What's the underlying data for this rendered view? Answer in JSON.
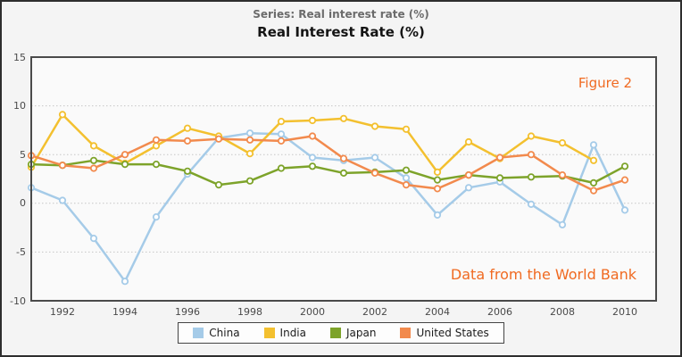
{
  "header": {
    "subtitle": "Series: Real interest rate (%)",
    "title": "Real Interest Rate (%)"
  },
  "annotations": {
    "figure_label": "Figure 2",
    "source_label": "Data from the World Bank",
    "annotation_color": "#f06a21"
  },
  "chart_data": {
    "type": "line",
    "title": "Real Interest Rate (%)",
    "subtitle": "Series: Real interest rate (%)",
    "x": [
      1991,
      1992,
      1993,
      1994,
      1995,
      1996,
      1997,
      1998,
      1999,
      2000,
      2001,
      2002,
      2003,
      2004,
      2005,
      2006,
      2007,
      2008,
      2009,
      2010
    ],
    "x_tick_labels": [
      "1992",
      "1994",
      "1996",
      "1998",
      "2000",
      "2002",
      "2004",
      "2006",
      "2008",
      "2010"
    ],
    "x_tick_years": [
      1992,
      1994,
      1996,
      1998,
      2000,
      2002,
      2004,
      2006,
      2008,
      2010
    ],
    "y_ticks": [
      15,
      10,
      5,
      0,
      -5,
      -10
    ],
    "grid_values": [
      10,
      5,
      0,
      -5
    ],
    "ylim": [
      -10,
      15
    ],
    "xlim": [
      1991,
      2011
    ],
    "grid": "dotted horizontal",
    "legend_position": "bottom-center",
    "series": [
      {
        "name": "China",
        "color": "#a5cbe8",
        "values": [
          1.6,
          0.3,
          -3.6,
          -8.0,
          -1.4,
          3.0,
          6.7,
          7.2,
          7.1,
          4.7,
          4.4,
          4.7,
          2.6,
          -1.2,
          1.6,
          2.2,
          -0.1,
          -2.2,
          6.0,
          -0.7
        ]
      },
      {
        "name": "India",
        "color": "#f3c02f",
        "values": [
          3.7,
          9.1,
          5.9,
          4.1,
          5.9,
          7.7,
          6.9,
          5.1,
          8.4,
          8.5,
          8.7,
          7.9,
          7.6,
          3.2,
          6.3,
          4.6,
          6.9,
          6.2,
          4.4,
          null
        ]
      },
      {
        "name": "Japan",
        "color": "#7da32a",
        "values": [
          4.0,
          3.9,
          4.4,
          4.0,
          4.0,
          3.3,
          1.9,
          2.3,
          3.6,
          3.8,
          3.1,
          3.2,
          3.4,
          2.4,
          2.9,
          2.6,
          2.7,
          2.8,
          2.1,
          3.8
        ]
      },
      {
        "name": "United States",
        "color": "#f28a4d",
        "values": [
          4.9,
          3.9,
          3.6,
          5.0,
          6.5,
          6.4,
          6.6,
          6.5,
          6.4,
          6.9,
          4.6,
          3.1,
          1.9,
          1.5,
          2.9,
          4.7,
          5.0,
          2.9,
          1.3,
          2.4
        ]
      }
    ]
  },
  "style": {
    "page_bg": "#f4f4f4",
    "plot_bg": "#fafafa",
    "plot_border": "#4a4a4a",
    "grid_color": "#c6c6c6",
    "tick_label_color": "#4a4a4a"
  }
}
